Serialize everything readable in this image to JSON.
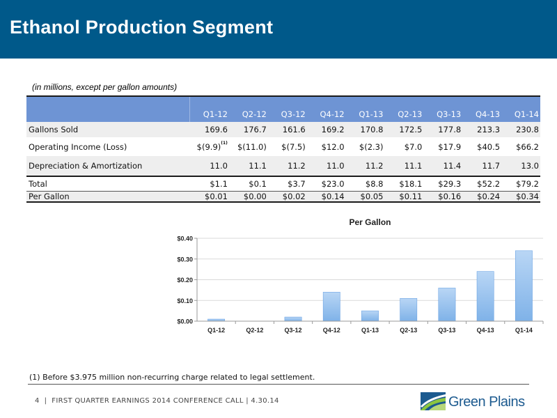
{
  "header": {
    "title": "Ethanol Production Segment"
  },
  "table": {
    "units_note": "(in millions, except per gallon amounts)",
    "columns": [
      "Q1-12",
      "Q2-12",
      "Q3-12",
      "Q4-12",
      "Q1-13",
      "Q2-13",
      "Q3-13",
      "Q4-13",
      "Q1-14"
    ],
    "rows": [
      {
        "label": "Gallons Sold",
        "values": [
          "169.6",
          "176.7",
          "161.6",
          "169.2",
          "170.8",
          "172.5",
          "177.8",
          "213.3",
          "230.8"
        ]
      },
      {
        "label": "Operating Income (Loss)",
        "values": [
          "$(9.9)",
          "$(11.0)",
          "$(7.5)",
          "$12.0",
          "$(2.3)",
          "$7.0",
          "$17.9",
          "$40.5",
          "$66.2"
        ],
        "footnote_marker": "(1)"
      },
      {
        "label": "Depreciation & Amortization",
        "values": [
          "11.0",
          "11.1",
          "11.2",
          "11.0",
          "11.2",
          "11.1",
          "11.4",
          "11.7",
          "13.0"
        ]
      },
      {
        "label": "Total",
        "values": [
          "$1.1",
          "$0.1",
          "$3.7",
          "$23.0",
          "$8.8",
          "$18.1",
          "$29.3",
          "$52.2",
          "$79.2"
        ]
      },
      {
        "label": "Per Gallon",
        "values": [
          "$0.01",
          "$0.00",
          "$0.02",
          "$0.14",
          "$0.05",
          "$0.11",
          "$0.16",
          "$0.24",
          "$0.34"
        ]
      }
    ]
  },
  "chart_data": {
    "type": "bar",
    "title": "Per Gallon",
    "categories": [
      "Q1-12",
      "Q2-12",
      "Q3-12",
      "Q4-12",
      "Q1-13",
      "Q2-13",
      "Q3-13",
      "Q4-13",
      "Q1-14"
    ],
    "values": [
      0.01,
      0.0,
      0.02,
      0.14,
      0.05,
      0.11,
      0.16,
      0.24,
      0.34
    ],
    "ylim": [
      0,
      0.4
    ],
    "yticks": [
      0.0,
      0.1,
      0.2,
      0.3,
      0.4
    ],
    "ytick_labels": [
      "$0.00",
      "$0.10",
      "$0.20",
      "$0.30",
      "$0.40"
    ],
    "xlabel": "",
    "ylabel": "",
    "grid": true,
    "bar_color": "#7fb2e8"
  },
  "footnote": "(1) Before $3.975 million non-recurring charge related to legal settlement.",
  "footer": {
    "page": "4",
    "separator": "|",
    "text": "FIRST QUARTER EARNINGS 2014 CONFERENCE CALL | 4.30.14"
  },
  "logo": {
    "text": "Green Plains",
    "icon": "green-plains-logo-icon"
  }
}
